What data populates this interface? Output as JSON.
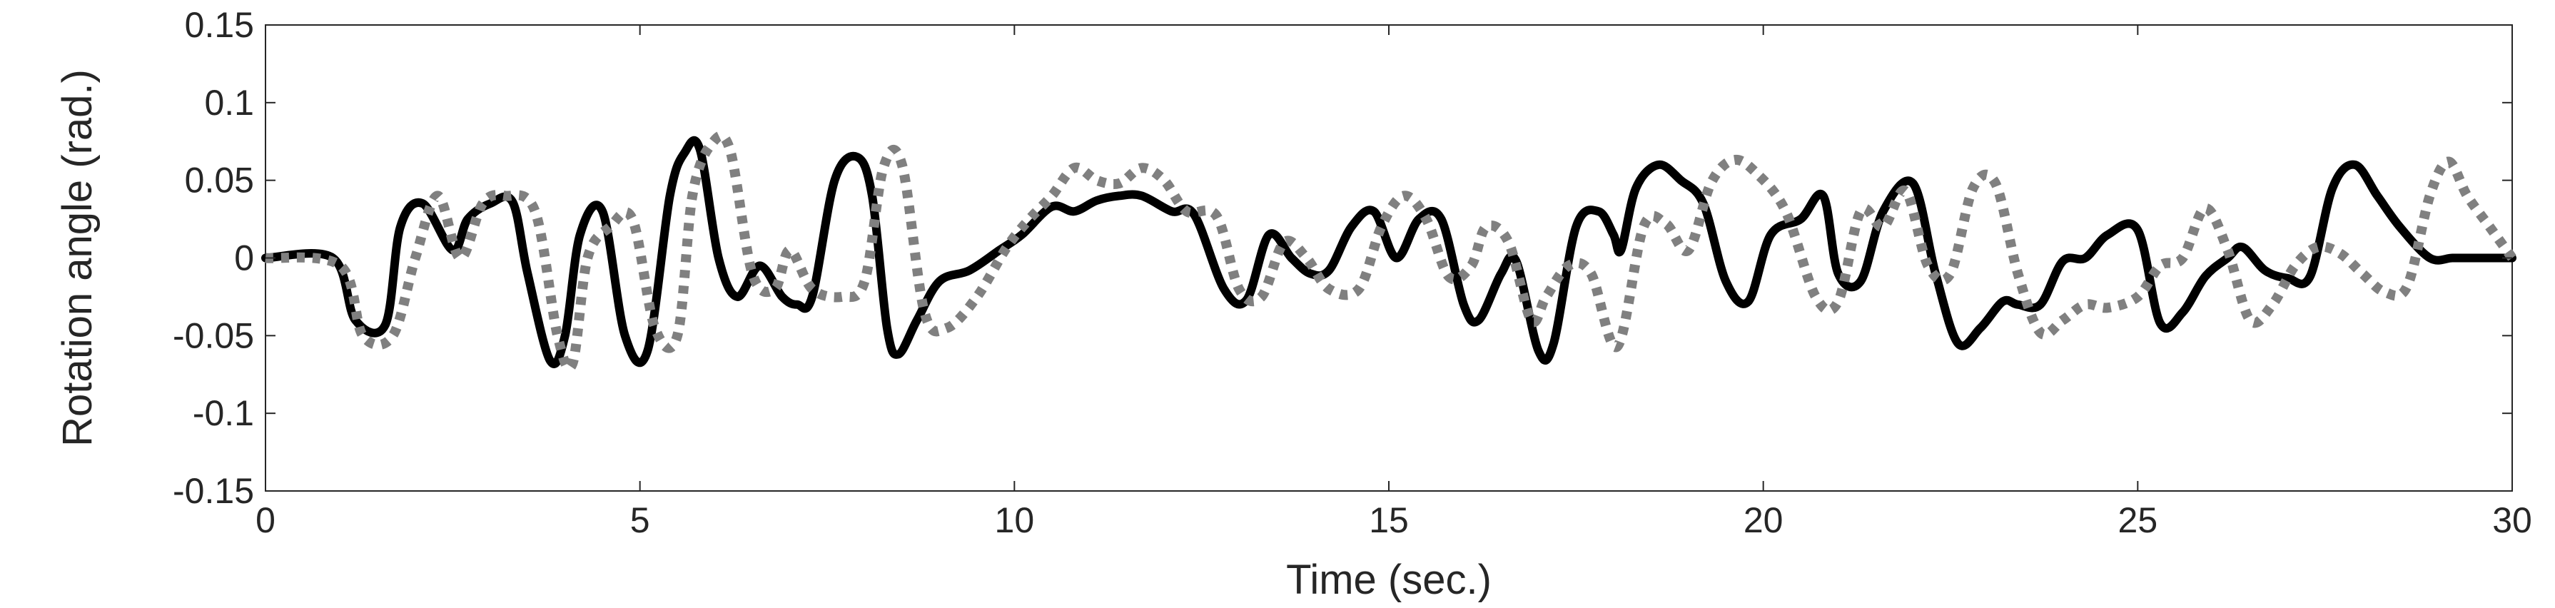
{
  "chart_data": {
    "type": "line",
    "xlabel": "Time (sec.)",
    "ylabel": "Rotation angle (rad.)",
    "xlim": [
      0,
      30
    ],
    "ylim": [
      -0.15,
      0.15
    ],
    "xticks": [
      0,
      5,
      10,
      15,
      20,
      25,
      30
    ],
    "yticks": [
      0.15,
      0.1,
      0.05,
      0,
      -0.05,
      -0.1,
      -0.15
    ],
    "xtick_labels": [
      "0",
      "5",
      "10",
      "15",
      "20",
      "25",
      "30"
    ],
    "ytick_labels": [
      "0.15",
      "0.1",
      "0.05",
      "0",
      "-0.05",
      "-0.1",
      "-0.15"
    ],
    "grid": false,
    "legend": false,
    "series": [
      {
        "style": "solid",
        "color": "#000000",
        "x": [
          0,
          0.9,
          1.2,
          1.6,
          1.8,
          2.1,
          2.5,
          2.7,
          3.0,
          3.3,
          3.5,
          3.8,
          4.0,
          4.2,
          4.5,
          4.8,
          5.1,
          5.4,
          5.6,
          5.8,
          6.05,
          6.3,
          6.6,
          6.9,
          7.1,
          7.3,
          7.6,
          7.9,
          8.1,
          8.3,
          8.45,
          8.7,
          9.0,
          9.4,
          9.8,
          10.1,
          10.5,
          10.8,
          11.1,
          11.4,
          11.7,
          12.1,
          12.4,
          12.8,
          13.1,
          13.4,
          13.7,
          13.95,
          14.2,
          14.5,
          14.8,
          15.1,
          15.4,
          15.7,
          16.0,
          16.2,
          16.5,
          16.7,
          17.0,
          17.2,
          17.5,
          17.8,
          18.0,
          18.1,
          18.3,
          18.6,
          18.9,
          19.2,
          19.5,
          19.8,
          20.1,
          20.5,
          20.8,
          21.0,
          21.3,
          21.6,
          22.0,
          22.3,
          22.6,
          22.9,
          23.2,
          23.4,
          23.7,
          24.0,
          24.3,
          24.6,
          25.0,
          25.3,
          25.6,
          25.9,
          26.2,
          26.4,
          26.7,
          27.0,
          27.3,
          27.6,
          27.9,
          28.2,
          28.5,
          28.9,
          29.2,
          29.45,
          29.7,
          30.0
        ],
        "y": [
          0,
          0,
          -0.04,
          -0.043,
          0.02,
          0.035,
          0.005,
          0.025,
          0.035,
          0.036,
          -0.01,
          -0.066,
          -0.05,
          0.015,
          0.03,
          -0.05,
          -0.06,
          0.04,
          0.068,
          0.07,
          0.0,
          -0.025,
          -0.005,
          -0.025,
          -0.03,
          -0.025,
          0.05,
          0.065,
          0.04,
          -0.045,
          -0.062,
          -0.04,
          -0.015,
          -0.008,
          0.005,
          0.015,
          0.033,
          0.03,
          0.037,
          0.04,
          0.04,
          0.03,
          0.028,
          -0.02,
          -0.027,
          0.015,
          0.0,
          -0.01,
          -0.008,
          0.02,
          0.03,
          0.0,
          0.025,
          0.025,
          -0.03,
          -0.04,
          -0.01,
          -0.002,
          -0.06,
          -0.055,
          0.02,
          0.03,
          0.015,
          0.005,
          0.045,
          0.06,
          0.05,
          0.035,
          -0.015,
          -0.028,
          0.015,
          0.025,
          0.04,
          -0.01,
          -0.015,
          0.03,
          0.048,
          -0.01,
          -0.055,
          -0.045,
          -0.028,
          -0.03,
          -0.03,
          -0.002,
          0.0,
          0.015,
          0.018,
          -0.042,
          -0.035,
          -0.012,
          0.0,
          0.007,
          -0.008,
          -0.013,
          -0.012,
          0.045,
          0.06,
          0.04,
          0.02,
          0.0,
          0.0,
          0.0,
          0.0,
          0.0
        ],
        "y_note": ""
      },
      {
        "style": "dotted",
        "color": "#808080",
        "x": [
          0,
          1.0,
          1.3,
          1.7,
          2.0,
          2.3,
          2.6,
          2.9,
          3.2,
          3.6,
          3.9,
          4.1,
          4.3,
          4.6,
          4.9,
          5.2,
          5.5,
          5.7,
          5.95,
          6.2,
          6.5,
          6.8,
          7.0,
          7.3,
          7.7,
          8.0,
          8.25,
          8.5,
          8.8,
          9.1,
          9.5,
          9.9,
          10.2,
          10.5,
          10.8,
          11.1,
          11.4,
          11.7,
          12.0,
          12.3,
          12.7,
          13.0,
          13.3,
          13.6,
          13.9,
          14.2,
          14.6,
          14.9,
          15.2,
          15.5,
          15.8,
          16.1,
          16.3,
          16.6,
          16.9,
          17.1,
          17.4,
          17.7,
          18.05,
          18.4,
          18.7,
          19.0,
          19.3,
          19.6,
          19.9,
          20.3,
          20.7,
          21.0,
          21.3,
          21.6,
          21.9,
          22.2,
          22.5,
          22.8,
          23.1,
          23.4,
          23.7,
          24.0,
          24.3,
          24.6,
          25.0,
          25.3,
          25.6,
          25.9,
          26.2,
          26.5,
          26.8,
          27.1,
          27.4,
          27.7,
          28.0,
          28.3,
          28.6,
          28.9,
          29.15,
          29.4,
          29.7,
          30.0
        ],
        "y": [
          0,
          -0.005,
          -0.05,
          -0.05,
          0.0,
          0.04,
          0.0,
          0.035,
          0.04,
          0.03,
          -0.05,
          -0.068,
          0.0,
          0.02,
          0.025,
          -0.045,
          -0.05,
          0.04,
          0.073,
          0.07,
          -0.01,
          -0.02,
          0.005,
          -0.02,
          -0.025,
          -0.015,
          0.058,
          0.06,
          -0.035,
          -0.045,
          -0.025,
          0.007,
          0.025,
          0.04,
          0.058,
          0.05,
          0.048,
          0.058,
          0.05,
          0.03,
          0.027,
          -0.02,
          -0.025,
          0.01,
          0.0,
          -0.02,
          -0.02,
          0.02,
          0.04,
          0.025,
          -0.012,
          -0.005,
          0.02,
          0.01,
          -0.04,
          -0.025,
          -0.005,
          -0.01,
          -0.057,
          0.02,
          0.022,
          0.005,
          0.048,
          0.063,
          0.055,
          0.03,
          -0.025,
          -0.028,
          0.03,
          0.02,
          0.043,
          -0.005,
          -0.01,
          0.045,
          0.048,
          -0.01,
          -0.048,
          -0.04,
          -0.03,
          -0.032,
          -0.025,
          -0.005,
          0.0,
          0.032,
          0.005,
          -0.04,
          -0.03,
          -0.005,
          0.007,
          0.003,
          -0.01,
          -0.022,
          -0.018,
          0.04,
          0.062,
          0.04,
          0.02,
          0.0
        ]
      }
    ]
  }
}
